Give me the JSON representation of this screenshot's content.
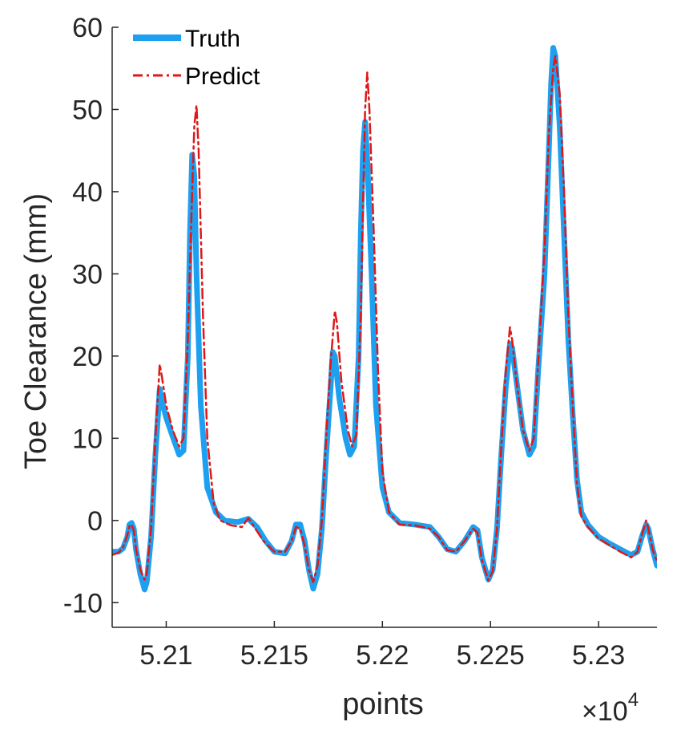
{
  "chart_data": {
    "type": "line",
    "xlabel": "points",
    "ylabel": "Toe Clearance (mm)",
    "x_exponent_label": "×10",
    "x_exponent_power": "4",
    "xlim": [
      5.2075,
      5.2327
    ],
    "ylim": [
      -13,
      60
    ],
    "x_ticks": [
      5.21,
      5.215,
      5.22,
      5.225,
      5.23
    ],
    "x_tick_labels": [
      "5.21",
      "5.215",
      "5.22",
      "5.225",
      "5.23"
    ],
    "y_ticks": [
      -10,
      0,
      10,
      20,
      30,
      40,
      50,
      60
    ],
    "y_tick_labels": [
      "-10",
      "0",
      "10",
      "20",
      "30",
      "40",
      "50",
      "60"
    ],
    "legend_position": "top-left",
    "grid": false,
    "series": [
      {
        "name": "Truth",
        "color": "#1ea0f0",
        "style": "solid-thick",
        "points": [
          [
            5.2075,
            -3.8
          ],
          [
            5.2078,
            -3.8
          ],
          [
            5.208,
            -3.4
          ],
          [
            5.2082,
            -2.0
          ],
          [
            5.2083,
            -0.5
          ],
          [
            5.2084,
            -0.3
          ],
          [
            5.2085,
            -1.0
          ],
          [
            5.2086,
            -3.5
          ],
          [
            5.2088,
            -6.5
          ],
          [
            5.209,
            -8.4
          ],
          [
            5.2091,
            -7.5
          ],
          [
            5.2093,
            -2.0
          ],
          [
            5.2095,
            8.0
          ],
          [
            5.2097,
            16.0
          ],
          [
            5.2098,
            14.5
          ],
          [
            5.21,
            12.5
          ],
          [
            5.2103,
            10.2
          ],
          [
            5.2106,
            8.0
          ],
          [
            5.2108,
            8.5
          ],
          [
            5.211,
            20.0
          ],
          [
            5.2111,
            35.0
          ],
          [
            5.2112,
            44.5
          ],
          [
            5.2113,
            42.0
          ],
          [
            5.2114,
            30.0
          ],
          [
            5.2116,
            14.0
          ],
          [
            5.2119,
            4.0
          ],
          [
            5.2123,
            1.0
          ],
          [
            5.2127,
            0.0
          ],
          [
            5.2133,
            -0.2
          ],
          [
            5.2138,
            0.2
          ],
          [
            5.2142,
            -0.8
          ],
          [
            5.2146,
            -2.5
          ],
          [
            5.215,
            -3.8
          ],
          [
            5.2155,
            -4.0
          ],
          [
            5.2158,
            -2.5
          ],
          [
            5.216,
            -0.5
          ],
          [
            5.2162,
            -0.5
          ],
          [
            5.2164,
            -2.5
          ],
          [
            5.2166,
            -6.0
          ],
          [
            5.2168,
            -8.3
          ],
          [
            5.217,
            -6.5
          ],
          [
            5.2172,
            -1.0
          ],
          [
            5.2174,
            8.0
          ],
          [
            5.2176,
            16.0
          ],
          [
            5.2177,
            20.5
          ],
          [
            5.2178,
            20.0
          ],
          [
            5.218,
            15.0
          ],
          [
            5.2183,
            10.0
          ],
          [
            5.2185,
            8.0
          ],
          [
            5.2187,
            9.0
          ],
          [
            5.2189,
            20.0
          ],
          [
            5.219,
            35.0
          ],
          [
            5.2191,
            45.0
          ],
          [
            5.2192,
            48.5
          ],
          [
            5.2193,
            44.0
          ],
          [
            5.2195,
            30.0
          ],
          [
            5.2197,
            14.0
          ],
          [
            5.22,
            4.0
          ],
          [
            5.2203,
            1.0
          ],
          [
            5.2208,
            -0.3
          ],
          [
            5.2215,
            -0.5
          ],
          [
            5.2222,
            -0.8
          ],
          [
            5.2226,
            -2.0
          ],
          [
            5.223,
            -3.5
          ],
          [
            5.2234,
            -3.8
          ],
          [
            5.2238,
            -2.5
          ],
          [
            5.2242,
            -0.8
          ],
          [
            5.2244,
            -1.2
          ],
          [
            5.2246,
            -4.5
          ],
          [
            5.2249,
            -7.2
          ],
          [
            5.2251,
            -6.0
          ],
          [
            5.2253,
            -1.0
          ],
          [
            5.2255,
            8.0
          ],
          [
            5.2257,
            16.0
          ],
          [
            5.2259,
            21.5
          ],
          [
            5.226,
            21.0
          ],
          [
            5.2262,
            17.0
          ],
          [
            5.2265,
            11.0
          ],
          [
            5.2268,
            8.0
          ],
          [
            5.227,
            9.0
          ],
          [
            5.2272,
            18.0
          ],
          [
            5.2275,
            30.0
          ],
          [
            5.2277,
            45.0
          ],
          [
            5.2278,
            53.0
          ],
          [
            5.2279,
            57.5
          ],
          [
            5.228,
            56.5
          ],
          [
            5.2282,
            48.0
          ],
          [
            5.2284,
            35.0
          ],
          [
            5.2286,
            22.0
          ],
          [
            5.2288,
            13.0
          ],
          [
            5.229,
            5.0
          ],
          [
            5.2292,
            1.0
          ],
          [
            5.2295,
            -0.5
          ],
          [
            5.23,
            -2.0
          ],
          [
            5.2305,
            -2.8
          ],
          [
            5.231,
            -3.5
          ],
          [
            5.2315,
            -4.2
          ],
          [
            5.2318,
            -3.8
          ],
          [
            5.232,
            -2.0
          ],
          [
            5.2322,
            -0.5
          ],
          [
            5.2323,
            -1.0
          ],
          [
            5.2325,
            -3.5
          ],
          [
            5.2327,
            -5.5
          ]
        ]
      },
      {
        "name": "Predict",
        "color": "#e01818",
        "style": "dash-dot",
        "points": [
          [
            5.2075,
            -4.2
          ],
          [
            5.2078,
            -3.9
          ],
          [
            5.208,
            -3.3
          ],
          [
            5.2082,
            -1.8
          ],
          [
            5.2083,
            -0.7
          ],
          [
            5.2084,
            -0.5
          ],
          [
            5.2085,
            -1.2
          ],
          [
            5.2086,
            -3.4
          ],
          [
            5.2088,
            -6.0
          ],
          [
            5.209,
            -7.2
          ],
          [
            5.2091,
            -6.5
          ],
          [
            5.2093,
            -1.0
          ],
          [
            5.2095,
            10.0
          ],
          [
            5.2097,
            19.0
          ],
          [
            5.2098,
            17.5
          ],
          [
            5.21,
            14.0
          ],
          [
            5.2103,
            11.0
          ],
          [
            5.2106,
            9.0
          ],
          [
            5.2108,
            10.0
          ],
          [
            5.211,
            22.0
          ],
          [
            5.2112,
            40.0
          ],
          [
            5.2113,
            48.0
          ],
          [
            5.2114,
            50.5
          ],
          [
            5.2115,
            45.0
          ],
          [
            5.2117,
            25.0
          ],
          [
            5.2119,
            10.0
          ],
          [
            5.2122,
            2.0
          ],
          [
            5.2125,
            0.0
          ],
          [
            5.213,
            -0.6
          ],
          [
            5.2135,
            -0.8
          ],
          [
            5.2138,
            0.3
          ],
          [
            5.214,
            -0.5
          ],
          [
            5.2145,
            -2.5
          ],
          [
            5.215,
            -3.8
          ],
          [
            5.2155,
            -3.8
          ],
          [
            5.2158,
            -2.5
          ],
          [
            5.216,
            -0.8
          ],
          [
            5.2162,
            -1.0
          ],
          [
            5.2164,
            -3.0
          ],
          [
            5.2166,
            -6.0
          ],
          [
            5.2168,
            -7.5
          ],
          [
            5.217,
            -5.5
          ],
          [
            5.2172,
            0.0
          ],
          [
            5.2174,
            10.0
          ],
          [
            5.2176,
            19.0
          ],
          [
            5.2178,
            25.5
          ],
          [
            5.2179,
            24.0
          ],
          [
            5.2181,
            17.0
          ],
          [
            5.2184,
            11.0
          ],
          [
            5.2186,
            9.0
          ],
          [
            5.2188,
            10.5
          ],
          [
            5.219,
            25.0
          ],
          [
            5.2191,
            38.0
          ],
          [
            5.2192,
            50.0
          ],
          [
            5.2193,
            54.5
          ],
          [
            5.2194,
            50.0
          ],
          [
            5.2196,
            35.0
          ],
          [
            5.2198,
            18.0
          ],
          [
            5.22,
            6.0
          ],
          [
            5.2203,
            1.0
          ],
          [
            5.2208,
            -0.5
          ],
          [
            5.2215,
            -0.6
          ],
          [
            5.2222,
            -1.0
          ],
          [
            5.2226,
            -2.0
          ],
          [
            5.223,
            -3.6
          ],
          [
            5.2234,
            -3.8
          ],
          [
            5.2238,
            -2.5
          ],
          [
            5.2242,
            -1.0
          ],
          [
            5.2244,
            -1.5
          ],
          [
            5.2246,
            -4.8
          ],
          [
            5.2249,
            -7.3
          ],
          [
            5.2251,
            -6.2
          ],
          [
            5.2253,
            -1.0
          ],
          [
            5.2255,
            9.0
          ],
          [
            5.2257,
            18.0
          ],
          [
            5.2259,
            23.5
          ],
          [
            5.226,
            22.0
          ],
          [
            5.2262,
            17.0
          ],
          [
            5.2265,
            11.0
          ],
          [
            5.2268,
            8.5
          ],
          [
            5.227,
            10.0
          ],
          [
            5.2272,
            19.0
          ],
          [
            5.2275,
            33.0
          ],
          [
            5.2277,
            47.0
          ],
          [
            5.2279,
            55.0
          ],
          [
            5.228,
            56.5
          ],
          [
            5.2282,
            52.0
          ],
          [
            5.2284,
            40.0
          ],
          [
            5.2286,
            25.0
          ],
          [
            5.2288,
            14.0
          ],
          [
            5.229,
            4.5
          ],
          [
            5.2292,
            0.5
          ],
          [
            5.2295,
            -0.8
          ],
          [
            5.23,
            -2.2
          ],
          [
            5.2305,
            -3.0
          ],
          [
            5.231,
            -3.8
          ],
          [
            5.2315,
            -4.5
          ],
          [
            5.2318,
            -3.8
          ],
          [
            5.232,
            -1.8
          ],
          [
            5.2322,
            0.0
          ],
          [
            5.2323,
            -1.0
          ],
          [
            5.2325,
            -3.5
          ],
          [
            5.2327,
            -5.0
          ]
        ]
      }
    ]
  }
}
